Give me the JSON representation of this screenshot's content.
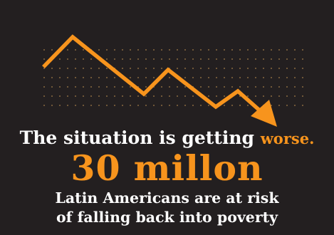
{
  "colors": {
    "background": "#231f20",
    "accent": "#f7941d",
    "text": "#ffffff",
    "dots": "#8a6a40"
  },
  "headline": {
    "text": "The situation is getting",
    "accent_word": "worse."
  },
  "big_number": "30 millon",
  "caption": {
    "line1": "Latin Americans are at risk",
    "line2": "of falling back into poverty"
  },
  "icons": {
    "trend": "downward-zigzag-arrow-icon",
    "pattern": "dot-grid-pattern"
  }
}
